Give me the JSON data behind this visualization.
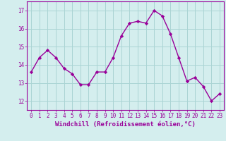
{
  "x": [
    0,
    1,
    2,
    3,
    4,
    5,
    6,
    7,
    8,
    9,
    10,
    11,
    12,
    13,
    14,
    15,
    16,
    17,
    18,
    19,
    20,
    21,
    22,
    23
  ],
  "y": [
    13.6,
    14.4,
    14.8,
    14.4,
    13.8,
    13.5,
    12.9,
    12.9,
    13.6,
    13.6,
    14.4,
    15.6,
    16.3,
    16.4,
    16.3,
    17.0,
    16.7,
    15.7,
    14.4,
    13.1,
    13.3,
    12.8,
    12.0,
    12.4
  ],
  "line_color": "#990099",
  "marker": "D",
  "marker_size": 2.2,
  "bg_color": "#d4eeee",
  "grid_color": "#aad4d4",
  "xlabel": "Windchill (Refroidissement éolien,°C)",
  "ylim": [
    11.5,
    17.5
  ],
  "xlim": [
    -0.5,
    23.5
  ],
  "yticks": [
    12,
    13,
    14,
    15,
    16,
    17
  ],
  "xticks": [
    0,
    1,
    2,
    3,
    4,
    5,
    6,
    7,
    8,
    9,
    10,
    11,
    12,
    13,
    14,
    15,
    16,
    17,
    18,
    19,
    20,
    21,
    22,
    23
  ],
  "tick_color": "#990099",
  "label_color": "#990099",
  "spine_color": "#990099",
  "font_size_tick": 5.5,
  "font_size_label": 6.5,
  "linewidth": 1.0
}
